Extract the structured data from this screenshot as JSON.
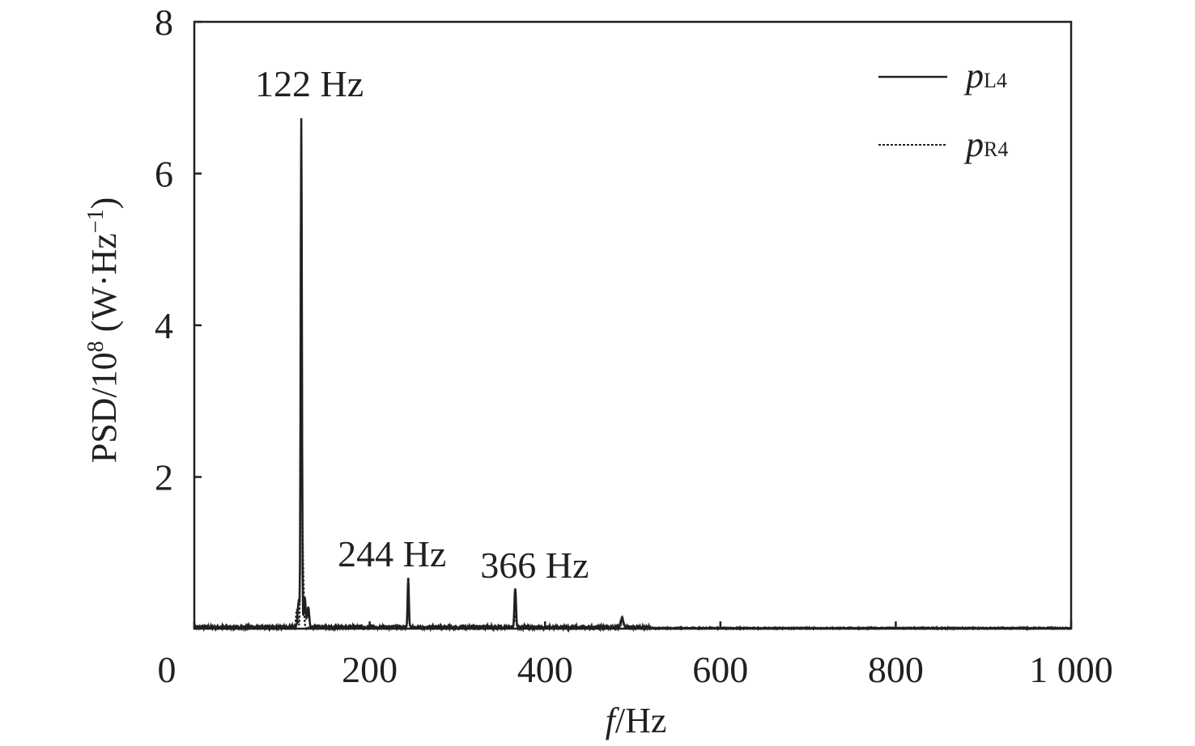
{
  "chart_data": {
    "type": "line",
    "title": "",
    "xlabel": {
      "var": "f",
      "unit": "/Hz"
    },
    "ylabel": {
      "text": "PSD/10",
      "sup": "8",
      "unit": " (W·Hz",
      "unit_sup": "−1",
      "close": ")"
    },
    "xlim": [
      0,
      1000
    ],
    "ylim": [
      0,
      8
    ],
    "x_ticks": [
      0,
      200,
      400,
      600,
      800,
      1000
    ],
    "x_tick_labels": [
      "0",
      "200",
      "400",
      "600",
      "800",
      "1 000"
    ],
    "y_ticks": [
      2,
      4,
      6,
      8
    ],
    "y_tick_labels": [
      "2",
      "4",
      "6",
      "8"
    ],
    "grid": false,
    "legend": {
      "placement": "top-right"
    },
    "series": [
      {
        "name": "pL4",
        "label_main": "p",
        "label_sub": "L4",
        "style": "solid",
        "color": "#231f20",
        "peaks": [
          {
            "f": 122,
            "a": 6.7,
            "w": 1.0
          },
          {
            "f": 244,
            "a": 0.65,
            "w": 1.0
          },
          {
            "f": 366,
            "a": 0.52,
            "w": 1.2
          },
          {
            "f": 488,
            "a": 0.12,
            "w": 2.0
          },
          {
            "f": 119,
            "a": 0.35,
            "w": 1.5
          },
          {
            "f": 126,
            "a": 0.4,
            "w": 1.5
          },
          {
            "f": 130,
            "a": 0.25,
            "w": 1.5
          }
        ],
        "noise": 0.04
      },
      {
        "name": "pR4",
        "label_main": "p",
        "label_sub": "R4",
        "style": "dotted",
        "color": "#231f20",
        "peaks": [
          {
            "f": 122,
            "a": 6.5,
            "w": 1.0
          },
          {
            "f": 244,
            "a": 0.2,
            "w": 1.5
          },
          {
            "f": 366,
            "a": 0.15,
            "w": 1.5
          },
          {
            "f": 488,
            "a": 0.08,
            "w": 2.0
          },
          {
            "f": 117,
            "a": 0.25,
            "w": 1.5
          },
          {
            "f": 124,
            "a": 0.8,
            "w": 1.2
          }
        ],
        "noise": 0.03
      }
    ],
    "annotations": [
      {
        "text": "122 Hz",
        "x": 122,
        "y": 7.0
      },
      {
        "text": "244 Hz",
        "x": 244,
        "y": 0.8
      },
      {
        "text": "366 Hz",
        "x": 366,
        "y": 0.65
      }
    ]
  }
}
